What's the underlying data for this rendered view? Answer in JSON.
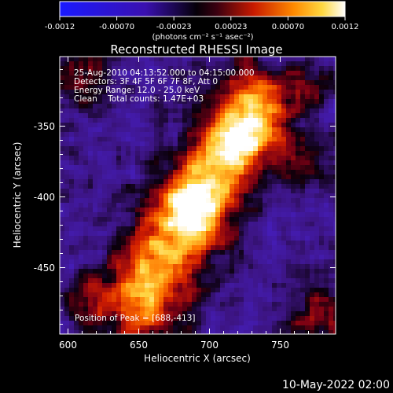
{
  "colorbar": {
    "tick_labels": [
      "-0.0012",
      "-0.00070",
      "-0.00023",
      "0.00023",
      "0.00070",
      "0.0012"
    ],
    "unit_label": "(photons cm⁻² s⁻¹ asec⁻²)",
    "range": [
      -0.0012,
      0.0012
    ]
  },
  "plot": {
    "title": "Reconstructed RHESSI Image",
    "info_lines": [
      "25-Aug-2010 04:13:52.000 to 04:15:00.000",
      "Detectors: 3F 4F 5F 6F 7F 8F, Att 0",
      "Energy Range: 12.0 - 25.0 keV",
      "Clean    Total counts: 1.47E+03"
    ],
    "peak_label": "Position of Peak = [688,-413]",
    "xlabel": "Heliocentric X (arcsec)",
    "ylabel": "Heliocentric Y (arcsec)",
    "x_ticks": [
      "600",
      "650",
      "700",
      "750"
    ],
    "y_ticks": [
      "-350",
      "-400",
      "-450"
    ],
    "xlim": [
      594,
      788
    ],
    "ylim": [
      -497,
      -308
    ],
    "colormap": "blue-black-red-yellow-white (RHESSI flare map)"
  },
  "footer": {
    "timestamp": "10-May-2022 02:00"
  },
  "colors": {
    "background": "#000000",
    "text": "#ffffff",
    "colorbar_low": "#2020ff",
    "colorbar_mid": "#000000",
    "colorbar_high": "#ffffff"
  }
}
